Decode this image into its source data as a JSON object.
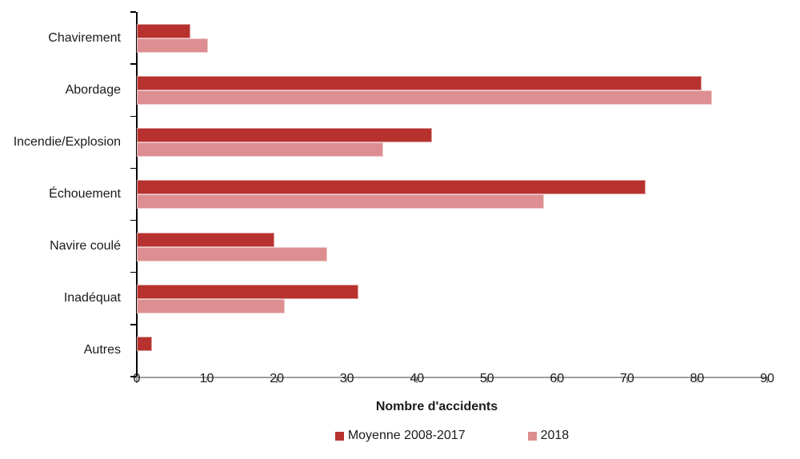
{
  "chart_data": {
    "type": "bar",
    "orientation": "horizontal",
    "title": "",
    "xlabel": "Nombre d'accidents",
    "ylabel": "",
    "xlim": [
      0,
      90
    ],
    "xticks": [
      0,
      10,
      20,
      30,
      40,
      50,
      60,
      70,
      80,
      90
    ],
    "grid": false,
    "legend_position": "bottom",
    "categories": [
      "Chavirement",
      "Abordage",
      "Incendie/Explosion",
      "Échouement",
      "Navire coulé",
      "Inadéquat",
      "Autres"
    ],
    "series": [
      {
        "name": "Moyenne 2008-2017",
        "color": "#b7322e",
        "values": [
          7.5,
          80.5,
          42,
          72.5,
          19.5,
          31.5,
          2
        ]
      },
      {
        "name": "2018",
        "color": "#dd8e90",
        "values": [
          10,
          82,
          35,
          58,
          27,
          21,
          0
        ]
      }
    ],
    "colors": {
      "series1": "#b7322e",
      "series2": "#dd8e90",
      "axis_line": "#9e9e9e",
      "text": "#1a1a1a"
    }
  }
}
